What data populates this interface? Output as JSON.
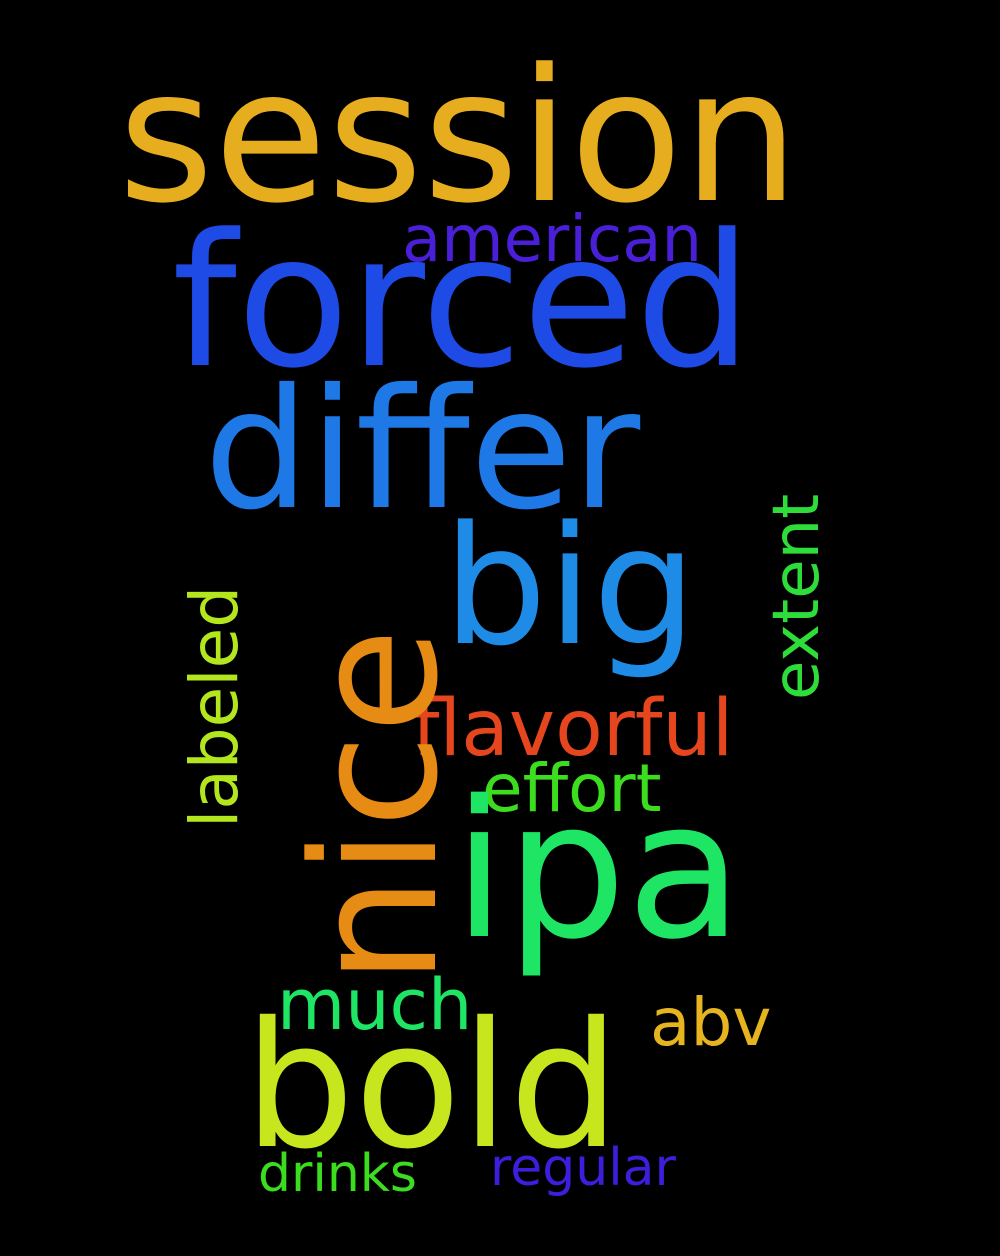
{
  "background_color": "#000000",
  "words": [
    {
      "id": "session",
      "text": "session",
      "color": "#E6AD1E",
      "orientation": "horizontal"
    },
    {
      "id": "forced",
      "text": "forced",
      "color": "#1E4BE6",
      "orientation": "horizontal"
    },
    {
      "id": "american",
      "text": "american",
      "color": "#4A1FD8",
      "orientation": "horizontal"
    },
    {
      "id": "differ",
      "text": "differ",
      "color": "#1E78E6",
      "orientation": "horizontal"
    },
    {
      "id": "big",
      "text": "big",
      "color": "#1E8CE6",
      "orientation": "horizontal"
    },
    {
      "id": "nice",
      "text": "nice",
      "color": "#E68C14",
      "orientation": "vertical"
    },
    {
      "id": "extent",
      "text": "extent",
      "color": "#2EDC3A",
      "orientation": "vertical"
    },
    {
      "id": "labeled",
      "text": "labeled",
      "color": "#B4E61E",
      "orientation": "vertical"
    },
    {
      "id": "flavorful",
      "text": "flavorful",
      "color": "#E6461E",
      "orientation": "horizontal"
    },
    {
      "id": "effort",
      "text": "effort",
      "color": "#3CDC1E",
      "orientation": "horizontal"
    },
    {
      "id": "ipa",
      "text": "ipa",
      "color": "#1EE664",
      "orientation": "horizontal"
    },
    {
      "id": "much",
      "text": "much",
      "color": "#1EE664",
      "orientation": "horizontal"
    },
    {
      "id": "abv",
      "text": "abv",
      "color": "#E6B41E",
      "orientation": "horizontal"
    },
    {
      "id": "bold",
      "text": "bold",
      "color": "#C8E61E",
      "orientation": "horizontal"
    },
    {
      "id": "drinks",
      "text": "drinks",
      "color": "#3CDC1E",
      "orientation": "horizontal"
    },
    {
      "id": "regular",
      "text": "regular",
      "color": "#3C1EDC",
      "orientation": "horizontal"
    }
  ]
}
